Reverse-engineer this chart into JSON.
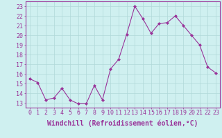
{
  "x": [
    0,
    1,
    2,
    3,
    4,
    5,
    6,
    7,
    8,
    9,
    10,
    11,
    12,
    13,
    14,
    15,
    16,
    17,
    18,
    19,
    20,
    21,
    22,
    23
  ],
  "y": [
    15.5,
    15.1,
    13.3,
    13.5,
    14.5,
    13.3,
    12.9,
    12.9,
    14.8,
    13.3,
    16.5,
    17.5,
    20.1,
    23.0,
    21.7,
    20.2,
    21.2,
    21.3,
    22.0,
    21.0,
    20.0,
    19.0,
    16.7,
    16.1
  ],
  "line_color": "#993399",
  "marker": "D",
  "marker_size": 2.0,
  "bg_color": "#cff0f0",
  "grid_color": "#b0d8d8",
  "xlabel": "Windchill (Refroidissement éolien,°C)",
  "xlabel_color": "#993399",
  "xlabel_fontsize": 7,
  "ytick_labels": [
    "13",
    "14",
    "15",
    "16",
    "17",
    "18",
    "19",
    "20",
    "21",
    "22",
    "23"
  ],
  "ytick_values": [
    13,
    14,
    15,
    16,
    17,
    18,
    19,
    20,
    21,
    22,
    23
  ],
  "ylim": [
    12.5,
    23.5
  ],
  "xlim": [
    -0.5,
    23.5
  ],
  "tick_color": "#993399",
  "tick_fontsize": 6,
  "spine_color": "#993399"
}
